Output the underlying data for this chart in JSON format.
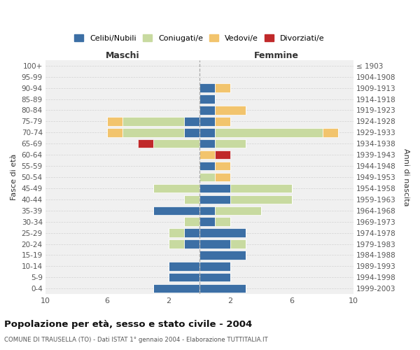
{
  "age_groups": [
    "0-4",
    "5-9",
    "10-14",
    "15-19",
    "20-24",
    "25-29",
    "30-34",
    "35-39",
    "40-44",
    "45-49",
    "50-54",
    "55-59",
    "60-64",
    "65-69",
    "70-74",
    "75-79",
    "80-84",
    "85-89",
    "90-94",
    "95-99",
    "100+"
  ],
  "birth_years": [
    "1999-2003",
    "1994-1998",
    "1989-1993",
    "1984-1988",
    "1979-1983",
    "1974-1978",
    "1969-1973",
    "1964-1968",
    "1959-1963",
    "1954-1958",
    "1949-1953",
    "1944-1948",
    "1939-1943",
    "1934-1938",
    "1929-1933",
    "1924-1928",
    "1919-1923",
    "1914-1918",
    "1909-1913",
    "1904-1908",
    "≤ 1903"
  ],
  "male": {
    "celibi": [
      3,
      2,
      2,
      0,
      1,
      1,
      0,
      3,
      0,
      0,
      0,
      0,
      0,
      0,
      1,
      1,
      0,
      0,
      0,
      0,
      0
    ],
    "coniugati": [
      0,
      0,
      0,
      0,
      1,
      1,
      1,
      0,
      1,
      3,
      0,
      0,
      0,
      3,
      4,
      4,
      0,
      0,
      0,
      0,
      0
    ],
    "vedovi": [
      0,
      0,
      0,
      0,
      0,
      0,
      0,
      0,
      0,
      0,
      0,
      0,
      0,
      0,
      1,
      1,
      0,
      0,
      0,
      0,
      0
    ],
    "divorziati": [
      0,
      0,
      0,
      0,
      0,
      0,
      0,
      0,
      0,
      0,
      0,
      0,
      0,
      1,
      0,
      0,
      0,
      0,
      0,
      0,
      0
    ]
  },
  "female": {
    "celibi": [
      3,
      2,
      2,
      3,
      2,
      3,
      1,
      1,
      2,
      2,
      0,
      1,
      0,
      1,
      1,
      1,
      1,
      1,
      1,
      0,
      0
    ],
    "coniugati": [
      0,
      0,
      0,
      0,
      1,
      0,
      1,
      3,
      4,
      4,
      1,
      0,
      0,
      2,
      7,
      0,
      0,
      0,
      0,
      0,
      0
    ],
    "vedovi": [
      0,
      0,
      0,
      0,
      0,
      0,
      0,
      0,
      0,
      0,
      1,
      1,
      1,
      0,
      1,
      1,
      2,
      0,
      1,
      0,
      0
    ],
    "divorziati": [
      0,
      0,
      0,
      0,
      0,
      0,
      0,
      0,
      0,
      0,
      0,
      0,
      1,
      0,
      0,
      0,
      0,
      0,
      0,
      0,
      0
    ]
  },
  "colors": {
    "celibi": "#3c6fa5",
    "coniugati": "#c8daa0",
    "vedovi": "#f2c46d",
    "divorziati": "#c0292a"
  },
  "xlim": 10,
  "title": "Popolazione per età, sesso e stato civile - 2004",
  "subtitle": "COMUNE DI TRAUSELLA (TO) - Dati ISTAT 1° gennaio 2004 - Elaborazione TUTTITALIA.IT",
  "ylabel_left": "Fasce di età",
  "ylabel_right": "Anni di nascita",
  "xlabel_left": "Maschi",
  "xlabel_right": "Femmine",
  "xtick_positions": [
    -10,
    -6,
    -2,
    2,
    6,
    10
  ],
  "xtick_labels": [
    "10",
    "6",
    "2",
    "2",
    "6",
    "10"
  ],
  "bg_color": "#f0f0f0",
  "legend_labels": [
    "Celibi/Nubili",
    "Coniugati/e",
    "Vedovi/e",
    "Divorziati/e"
  ]
}
